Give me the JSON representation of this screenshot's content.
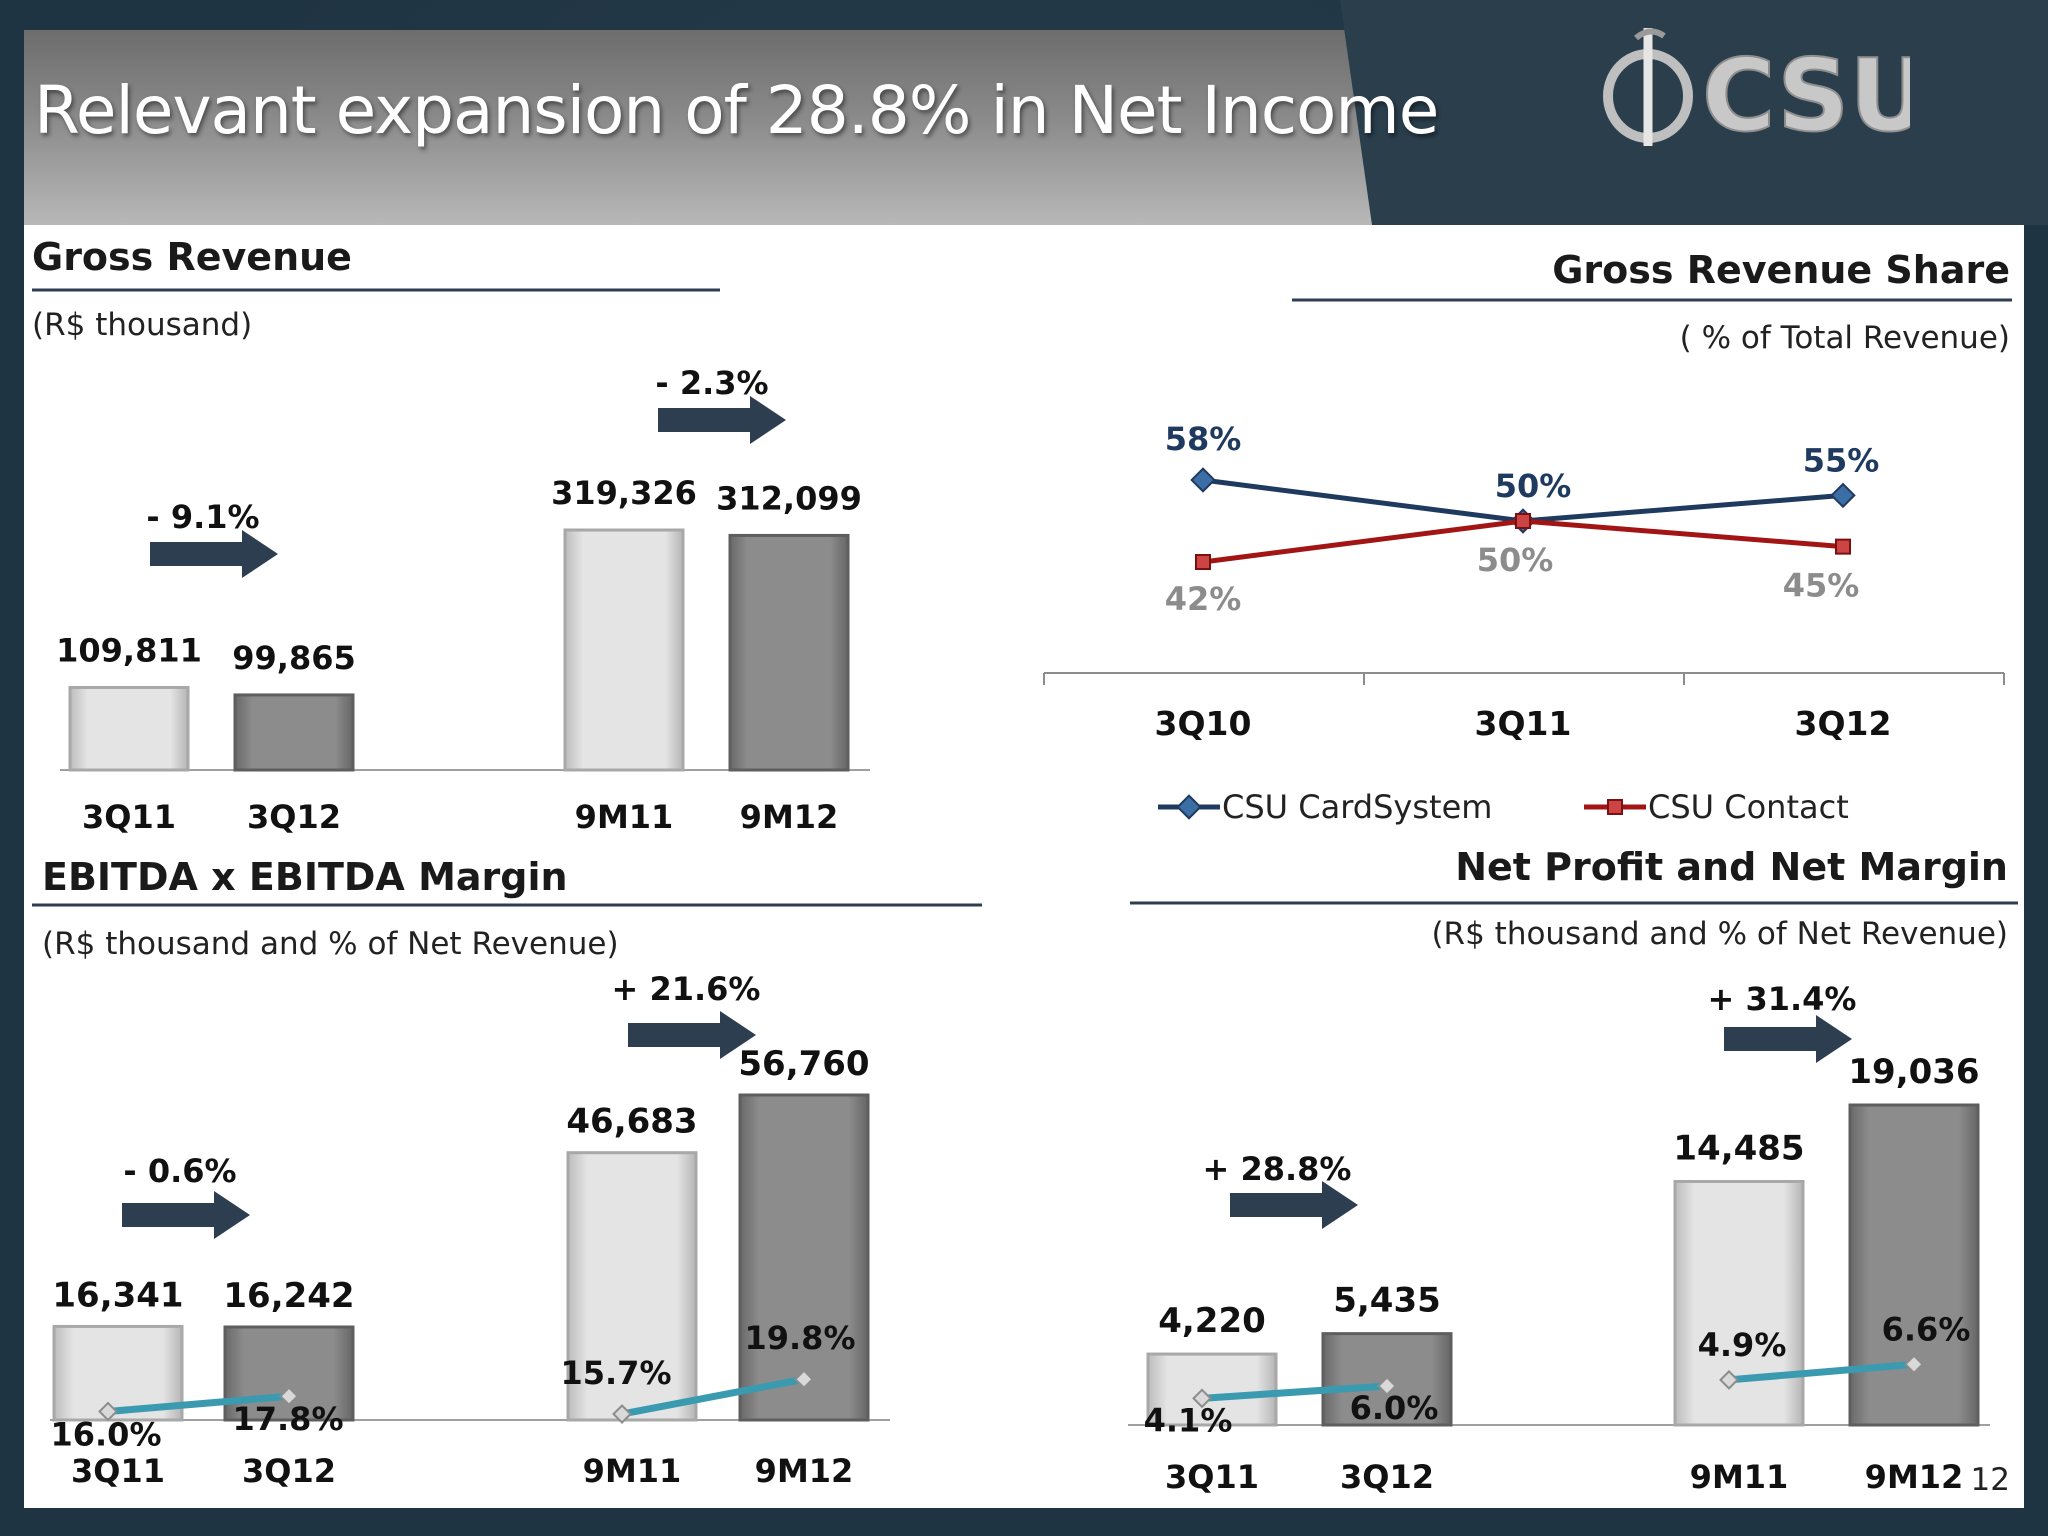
{
  "slide": {
    "title": "Relevant expansion of 28.8% in Net Income",
    "logo_text": "CSU",
    "page_number": "12"
  },
  "colors": {
    "light_bar": "#d3d3d3",
    "dark_bar": "#808080",
    "margin_line": "#3a9ab0",
    "arrow": "#2c3e50",
    "cardsystem": "#1f3a5f",
    "contact": "#a31515",
    "contact_label": "#8c8c8c"
  },
  "chart_data": [
    {
      "id": "gross_revenue",
      "type": "bar",
      "title": "Gross Revenue",
      "subtitle": "(R$ thousand)",
      "groups": [
        {
          "categories": [
            "3Q11",
            "3Q12"
          ],
          "values": [
            109811,
            99865
          ],
          "value_labels": [
            "109,811",
            "99,865"
          ],
          "change": "- 9.1%"
        },
        {
          "categories": [
            "9M11",
            "9M12"
          ],
          "values": [
            319326,
            312099
          ],
          "value_labels": [
            "319,326",
            "312,099"
          ],
          "change": "- 2.3%"
        }
      ]
    },
    {
      "id": "revenue_share",
      "type": "line",
      "title": "Gross Revenue Share",
      "subtitle": "( % of Total Revenue)",
      "categories": [
        "3Q10",
        "3Q11",
        "3Q12"
      ],
      "series": [
        {
          "name": "CSU CardSystem",
          "values": [
            58,
            50,
            55
          ],
          "labels": [
            "58%",
            "50%",
            "55%"
          ]
        },
        {
          "name": "CSU Contact",
          "values": [
            42,
            50,
            45
          ],
          "labels": [
            "42%",
            "50%",
            "45%"
          ]
        }
      ],
      "legend": "bottom"
    },
    {
      "id": "ebitda",
      "type": "bar",
      "title": "EBITDA x EBITDA Margin",
      "subtitle": "(R$ thousand and % of Net Revenue)",
      "groups": [
        {
          "categories": [
            "3Q11",
            "3Q12"
          ],
          "values": [
            16341,
            16242
          ],
          "value_labels": [
            "16,341",
            "16,242"
          ],
          "margins": [
            16.0,
            17.8
          ],
          "margin_labels": [
            "16.0%",
            "17.8%"
          ],
          "change": "- 0.6%"
        },
        {
          "categories": [
            "9M11",
            "9M12"
          ],
          "values": [
            46683,
            56760
          ],
          "value_labels": [
            "46,683",
            "56,760"
          ],
          "margins": [
            15.7,
            19.8
          ],
          "margin_labels": [
            "15.7%",
            "19.8%"
          ],
          "change": "+ 21.6%"
        }
      ]
    },
    {
      "id": "net_profit",
      "type": "bar",
      "title": "Net Profit and Net Margin",
      "subtitle": "(R$ thousand and % of Net Revenue)",
      "groups": [
        {
          "categories": [
            "3Q11",
            "3Q12"
          ],
          "values": [
            4220,
            5435
          ],
          "value_labels": [
            "4,220",
            "5,435"
          ],
          "margins": [
            4.1,
            6.0
          ],
          "margin_labels": [
            "4.1%",
            "6.0%"
          ],
          "change": "+ 28.8%"
        },
        {
          "categories": [
            "9M11",
            "9M12"
          ],
          "values": [
            14485,
            19036
          ],
          "value_labels": [
            "14,485",
            "19,036"
          ],
          "margins": [
            4.9,
            6.6
          ],
          "margin_labels": [
            "4.9%",
            "6.6%"
          ],
          "change": "+ 31.4%"
        }
      ]
    }
  ]
}
